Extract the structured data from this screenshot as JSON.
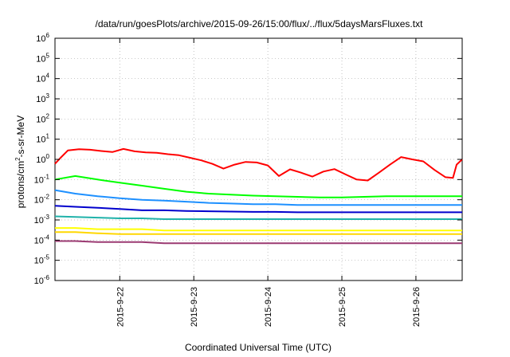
{
  "chart_data": {
    "type": "line",
    "title": "/data/run/goesPlots/archive/2015-09-26/15:00/flux/../flux/5daysMarsFluxes.txt",
    "xlabel": "Coordinated Universal Time (UTC)",
    "ylabel_main": "protons/cm",
    "ylabel_sup": "2",
    "ylabel_rest": "-s-sr-MeV",
    "x_start": "2015-09-21 03:00",
    "x_end": "2015-09-26 15:00",
    "x_range_days": [
      21.125,
      26.625
    ],
    "xticks": [
      {
        "label": "2015-9-22",
        "day": 22
      },
      {
        "label": "2015-9-23",
        "day": 23
      },
      {
        "label": "2015-9-24",
        "day": 24
      },
      {
        "label": "2015-9-25",
        "day": 25
      },
      {
        "label": "2015-9-26",
        "day": 26
      }
    ],
    "y_scale": "log",
    "ylim_exp": [
      -6,
      6
    ],
    "yticks": [
      {
        "base": "10",
        "exp": "6"
      },
      {
        "base": "10",
        "exp": "5"
      },
      {
        "base": "10",
        "exp": "4"
      },
      {
        "base": "10",
        "exp": "3"
      },
      {
        "base": "10",
        "exp": "2"
      },
      {
        "base": "10",
        "exp": "1"
      },
      {
        "base": "10",
        "exp": "0"
      },
      {
        "base": "10",
        "exp": "-1"
      },
      {
        "base": "10",
        "exp": "-2"
      },
      {
        "base": "10",
        "exp": "-3"
      },
      {
        "base": "10",
        "exp": "-4"
      },
      {
        "base": "10",
        "exp": "-5"
      },
      {
        "base": "10",
        "exp": "-6"
      }
    ],
    "grid": true,
    "legend": "none",
    "series": [
      {
        "color": "#ff0000",
        "x_days": [
          21.125,
          21.2,
          21.3,
          21.45,
          21.6,
          21.75,
          21.9,
          22.05,
          22.2,
          22.35,
          22.5,
          22.65,
          22.8,
          22.95,
          23.1,
          23.25,
          23.4,
          23.55,
          23.7,
          23.85,
          24.0,
          24.15,
          24.3,
          24.45,
          24.6,
          24.75,
          24.9,
          25.05,
          25.2,
          25.35,
          25.5,
          25.65,
          25.8,
          25.95,
          26.1,
          26.25,
          26.4,
          26.5,
          26.55,
          26.625
        ],
        "y": [
          0.6,
          1.2,
          2.8,
          3.2,
          3.0,
          2.6,
          2.3,
          3.3,
          2.5,
          2.2,
          2.1,
          1.8,
          1.6,
          1.2,
          0.9,
          0.6,
          0.35,
          0.55,
          0.75,
          0.7,
          0.5,
          0.15,
          0.32,
          0.22,
          0.14,
          0.25,
          0.33,
          0.18,
          0.1,
          0.09,
          0.22,
          0.55,
          1.3,
          1.0,
          0.8,
          0.3,
          0.13,
          0.12,
          0.55,
          1.0
        ]
      },
      {
        "color": "#00ff00",
        "x_days": [
          21.125,
          21.4,
          21.7,
          22.0,
          22.3,
          22.6,
          22.9,
          23.2,
          23.5,
          23.8,
          24.1,
          24.4,
          24.7,
          25.0,
          25.3,
          25.6,
          25.9,
          26.2,
          26.625
        ],
        "y": [
          0.1,
          0.15,
          0.1,
          0.07,
          0.05,
          0.035,
          0.025,
          0.02,
          0.018,
          0.016,
          0.015,
          0.014,
          0.013,
          0.013,
          0.014,
          0.015,
          0.015,
          0.015,
          0.015
        ]
      },
      {
        "color": "#1e90ff",
        "x_days": [
          21.125,
          21.4,
          21.7,
          22.0,
          22.3,
          22.6,
          22.9,
          23.2,
          23.5,
          23.8,
          24.1,
          24.4,
          24.7,
          25.0,
          25.3,
          25.6,
          25.9,
          26.2,
          26.625
        ],
        "y": [
          0.03,
          0.02,
          0.015,
          0.012,
          0.01,
          0.009,
          0.008,
          0.007,
          0.0065,
          0.006,
          0.006,
          0.0055,
          0.0055,
          0.0055,
          0.0055,
          0.0055,
          0.0055,
          0.0055,
          0.0055
        ]
      },
      {
        "color": "#0000cd",
        "x_days": [
          21.125,
          21.4,
          21.7,
          22.0,
          22.3,
          22.6,
          22.9,
          23.2,
          23.5,
          23.8,
          24.1,
          24.4,
          24.7,
          25.0,
          25.3,
          25.6,
          25.9,
          26.2,
          26.625
        ],
        "y": [
          0.005,
          0.0045,
          0.004,
          0.0035,
          0.003,
          0.003,
          0.0028,
          0.0027,
          0.0026,
          0.0025,
          0.0025,
          0.0024,
          0.0024,
          0.0024,
          0.0024,
          0.0024,
          0.0024,
          0.0024,
          0.0024
        ]
      },
      {
        "color": "#20b2aa",
        "x_days": [
          21.125,
          21.4,
          21.7,
          22.0,
          22.3,
          22.6,
          22.9,
          23.2,
          23.5,
          23.8,
          24.1,
          24.4,
          24.7,
          25.0,
          25.3,
          25.6,
          25.9,
          26.2,
          26.625
        ],
        "y": [
          0.0015,
          0.0014,
          0.0013,
          0.0012,
          0.0012,
          0.0011,
          0.0011,
          0.0011,
          0.0011,
          0.0011,
          0.0011,
          0.0011,
          0.0011,
          0.0011,
          0.0011,
          0.0011,
          0.0011,
          0.0011,
          0.0011
        ]
      },
      {
        "color": "#ffff00",
        "x_days": [
          21.125,
          21.4,
          21.7,
          22.0,
          22.3,
          22.6,
          22.9,
          23.2,
          23.5,
          23.8,
          24.1,
          24.4,
          24.7,
          25.0,
          25.3,
          25.6,
          25.9,
          26.2,
          26.625
        ],
        "y": [
          0.0004,
          0.0004,
          0.00035,
          0.00035,
          0.00035,
          0.0003,
          0.0003,
          0.0003,
          0.0003,
          0.0003,
          0.0003,
          0.0003,
          0.0003,
          0.0003,
          0.0003,
          0.0003,
          0.0003,
          0.0003,
          0.0003
        ]
      },
      {
        "color": "#ffd700",
        "x_days": [
          21.125,
          21.4,
          21.7,
          22.0,
          22.3,
          22.6,
          22.9,
          23.2,
          23.5,
          23.8,
          24.1,
          24.4,
          24.7,
          25.0,
          25.3,
          25.6,
          25.9,
          26.2,
          26.625
        ],
        "y": [
          0.00025,
          0.00025,
          0.00022,
          0.0002,
          0.0002,
          0.0002,
          0.0002,
          0.0002,
          0.0002,
          0.0002,
          0.0002,
          0.0002,
          0.0002,
          0.0002,
          0.0002,
          0.0002,
          0.0002,
          0.0002,
          0.0002
        ]
      },
      {
        "color": "#9b3a72",
        "x_days": [
          21.125,
          21.4,
          21.7,
          22.0,
          22.3,
          22.6,
          22.9,
          23.2,
          23.5,
          23.8,
          24.1,
          24.4,
          24.7,
          25.0,
          25.3,
          25.6,
          25.9,
          26.2,
          26.625
        ],
        "y": [
          9e-05,
          9e-05,
          8e-05,
          8e-05,
          8e-05,
          7e-05,
          7e-05,
          7e-05,
          7e-05,
          7e-05,
          7e-05,
          7e-05,
          7e-05,
          7e-05,
          7e-05,
          7e-05,
          7e-05,
          7e-05,
          7e-05
        ]
      }
    ]
  }
}
